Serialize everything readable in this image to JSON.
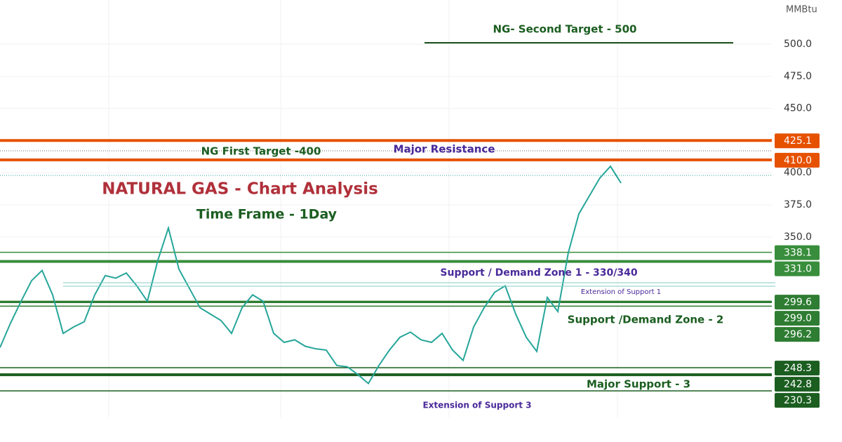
{
  "chart_data": {
    "type": "line",
    "title": "NATURAL GAS - Chart Analysis",
    "subtitle": "Time Frame - 1Day",
    "y_label": "MMBtu",
    "ylim": [
      209.6,
      534.4
    ],
    "yticks": [
      {
        "value": 350,
        "label": "350.0"
      },
      {
        "value": 375,
        "label": "375.0"
      },
      {
        "value": 400,
        "label": "400.0"
      },
      {
        "value": 450,
        "label": "450.0"
      },
      {
        "value": 475,
        "label": "475.0"
      },
      {
        "value": 500,
        "label": "500.0"
      }
    ],
    "grid": true,
    "series": [
      {
        "name": "NG",
        "color": "#26a69a",
        "values": [
          264,
          283,
          300,
          316,
          324,
          305,
          275,
          280,
          284,
          305,
          320,
          318,
          322,
          312,
          300,
          332,
          357,
          325,
          310,
          295,
          290,
          285,
          275,
          295,
          305,
          300,
          275,
          268,
          270,
          265,
          263,
          262,
          250,
          249,
          243,
          236,
          250,
          262,
          272,
          276,
          270,
          268,
          275,
          262,
          254,
          280,
          295,
          307,
          312,
          290,
          272,
          261,
          303,
          292,
          338,
          368,
          382,
          396,
          405,
          392
        ]
      }
    ],
    "levels": {
      "values": [
        425.1,
        410,
        338.1,
        331,
        299.6,
        299,
        296.2,
        248.3,
        242.8,
        230.3
      ],
      "value_labels": [
        "425.1",
        "410.0",
        "338.1",
        "331.0",
        "299.6",
        "299.0",
        "296.2",
        "248.3",
        "242.8",
        "230.3"
      ],
      "colors": [
        "#e65100",
        "#e65100",
        "#388e3c",
        "#388e3c",
        "#2e7d32",
        "#2e7d32",
        "#2e7d32",
        "#1b5e20",
        "#1b5e20",
        "#1b5e20"
      ]
    },
    "annotations": {
      "second_target": "NG- Second Target - 500",
      "first_target": "NG First Target -400",
      "major_resistance": "Major Resistance",
      "zone1": "Support / Demand Zone  1 - 330/340",
      "ext1": "Extension of Support 1",
      "zone2": "Support /Demand Zone - 2",
      "major_support": "Major Support - 3",
      "ext3": "Extension of Support 3"
    }
  }
}
